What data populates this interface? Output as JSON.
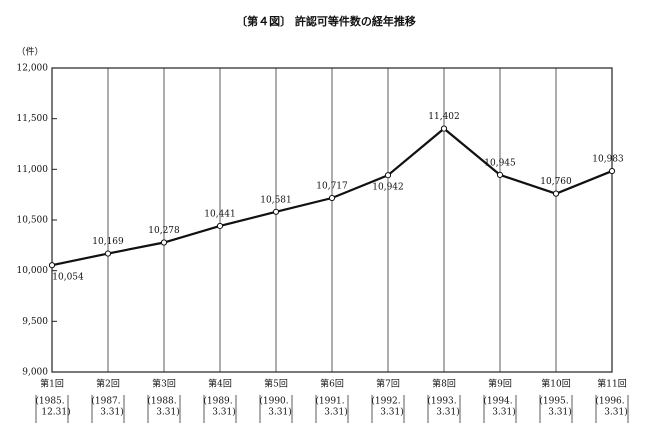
{
  "chart_data": {
    "type": "line",
    "title": "〔第４図〕 許認可等件数の経年推移",
    "y_unit": "（件）",
    "categories": [
      "第1回",
      "第2回",
      "第3回",
      "第4回",
      "第5回",
      "第6回",
      "第7回",
      "第8回",
      "第9回",
      "第10回",
      "第11回"
    ],
    "category_dates": [
      [
        "(1985.",
        "12.31)"
      ],
      [
        "(1987.",
        "3.31)"
      ],
      [
        "(1988.",
        "3.31)"
      ],
      [
        "(1989.",
        "3.31)"
      ],
      [
        "(1990.",
        "3.31)"
      ],
      [
        "(1991.",
        "3.31)"
      ],
      [
        "(1992.",
        "3.31)"
      ],
      [
        "(1993.",
        "3.31)"
      ],
      [
        "(1994.",
        "3.31)"
      ],
      [
        "(1995.",
        "3.31)"
      ],
      [
        "(1996.",
        "3.31)"
      ]
    ],
    "values": [
      10054,
      10169,
      10278,
      10441,
      10581,
      10717,
      10942,
      11402,
      10945,
      10760,
      10983
    ],
    "value_labels": [
      "10,054",
      "10,169",
      "10,278",
      "10,441",
      "10,581",
      "10,717",
      "10,942",
      "11,402",
      "10,945",
      "10,760",
      "10,983"
    ],
    "color": "#111111",
    "ylim": [
      9000,
      12000
    ],
    "yticks": [
      {
        "value": 9000,
        "label": "9,000"
      },
      {
        "value": 9500,
        "label": "9,500"
      },
      {
        "value": 10000,
        "label": "10,000"
      },
      {
        "value": 10500,
        "label": "10,500"
      },
      {
        "value": 11000,
        "label": "11,000"
      },
      {
        "value": 11500,
        "label": "11,500"
      },
      {
        "value": 12000,
        "label": "12,000"
      }
    ],
    "grid": "vertical"
  }
}
